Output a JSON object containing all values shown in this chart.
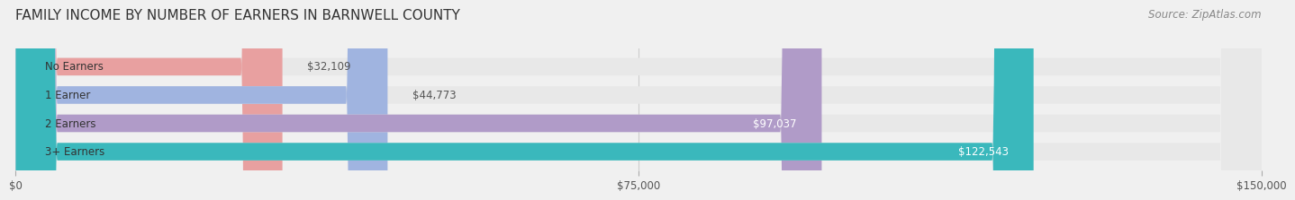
{
  "title": "FAMILY INCOME BY NUMBER OF EARNERS IN BARNWELL COUNTY",
  "source": "Source: ZipAtlas.com",
  "categories": [
    "No Earners",
    "1 Earner",
    "2 Earners",
    "3+ Earners"
  ],
  "values": [
    32109,
    44773,
    97037,
    122543
  ],
  "bar_colors": [
    "#e8a0a0",
    "#a0b4e0",
    "#b09bc8",
    "#3ab8bc"
  ],
  "value_labels": [
    "$32,109",
    "$44,773",
    "$97,037",
    "$122,543"
  ],
  "xlim": [
    0,
    150000
  ],
  "xticks": [
    0,
    75000,
    150000
  ],
  "xticklabels": [
    "$0",
    "$75,000",
    "$150,000"
  ],
  "background_color": "#f0f0f0",
  "bar_background_color": "#e8e8e8",
  "title_fontsize": 11,
  "source_fontsize": 8.5
}
